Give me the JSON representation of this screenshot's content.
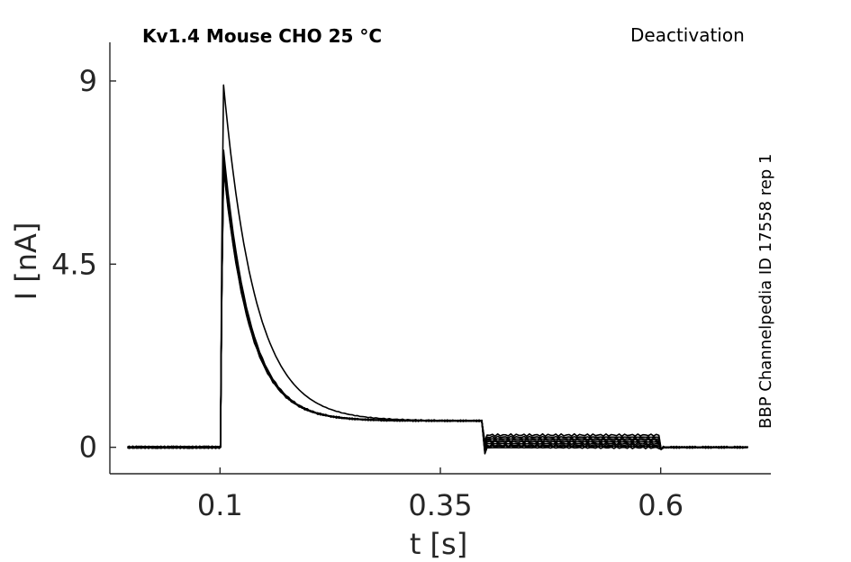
{
  "chart_data": {
    "type": "line",
    "title": "Kv1.4  Mouse  CHO  25 °C",
    "annotation_right": "Deactivation",
    "side_label": "BBP Channelpedia ID 17558 rep 1",
    "xlabel": "t [s]",
    "ylabel": "I [nA]",
    "xlim": [
      -0.025,
      0.725
    ],
    "ylim": [
      -0.65,
      9.95
    ],
    "xticks": [
      0.1,
      0.35,
      0.6
    ],
    "xtick_labels": [
      "0.1",
      "0.35",
      "0.6"
    ],
    "yticks": [
      0,
      4.5,
      9
    ],
    "ytick_labels": [
      "0",
      "4.5",
      "9"
    ],
    "grid": false,
    "legend": "none",
    "protocol": {
      "baseline": 0.0,
      "step_on": 0.1,
      "step_off": 0.4,
      "tail_end": 0.6,
      "end": 0.7,
      "decay_tau": 0.03,
      "steady_before_step_off": 0.65
    },
    "series": [
      {
        "peak": 8.9,
        "tail": 0.3
      },
      {
        "peak": 7.3,
        "tail": 0.25
      },
      {
        "peak": 7.2,
        "tail": 0.21
      },
      {
        "peak": 7.15,
        "tail": 0.17
      },
      {
        "peak": 7.1,
        "tail": 0.13
      },
      {
        "peak": 7.0,
        "tail": 0.09
      },
      {
        "peak": 6.95,
        "tail": 0.05
      },
      {
        "peak": 6.9,
        "tail": 0.02
      },
      {
        "peak": 6.85,
        "tail": -0.01
      }
    ]
  }
}
